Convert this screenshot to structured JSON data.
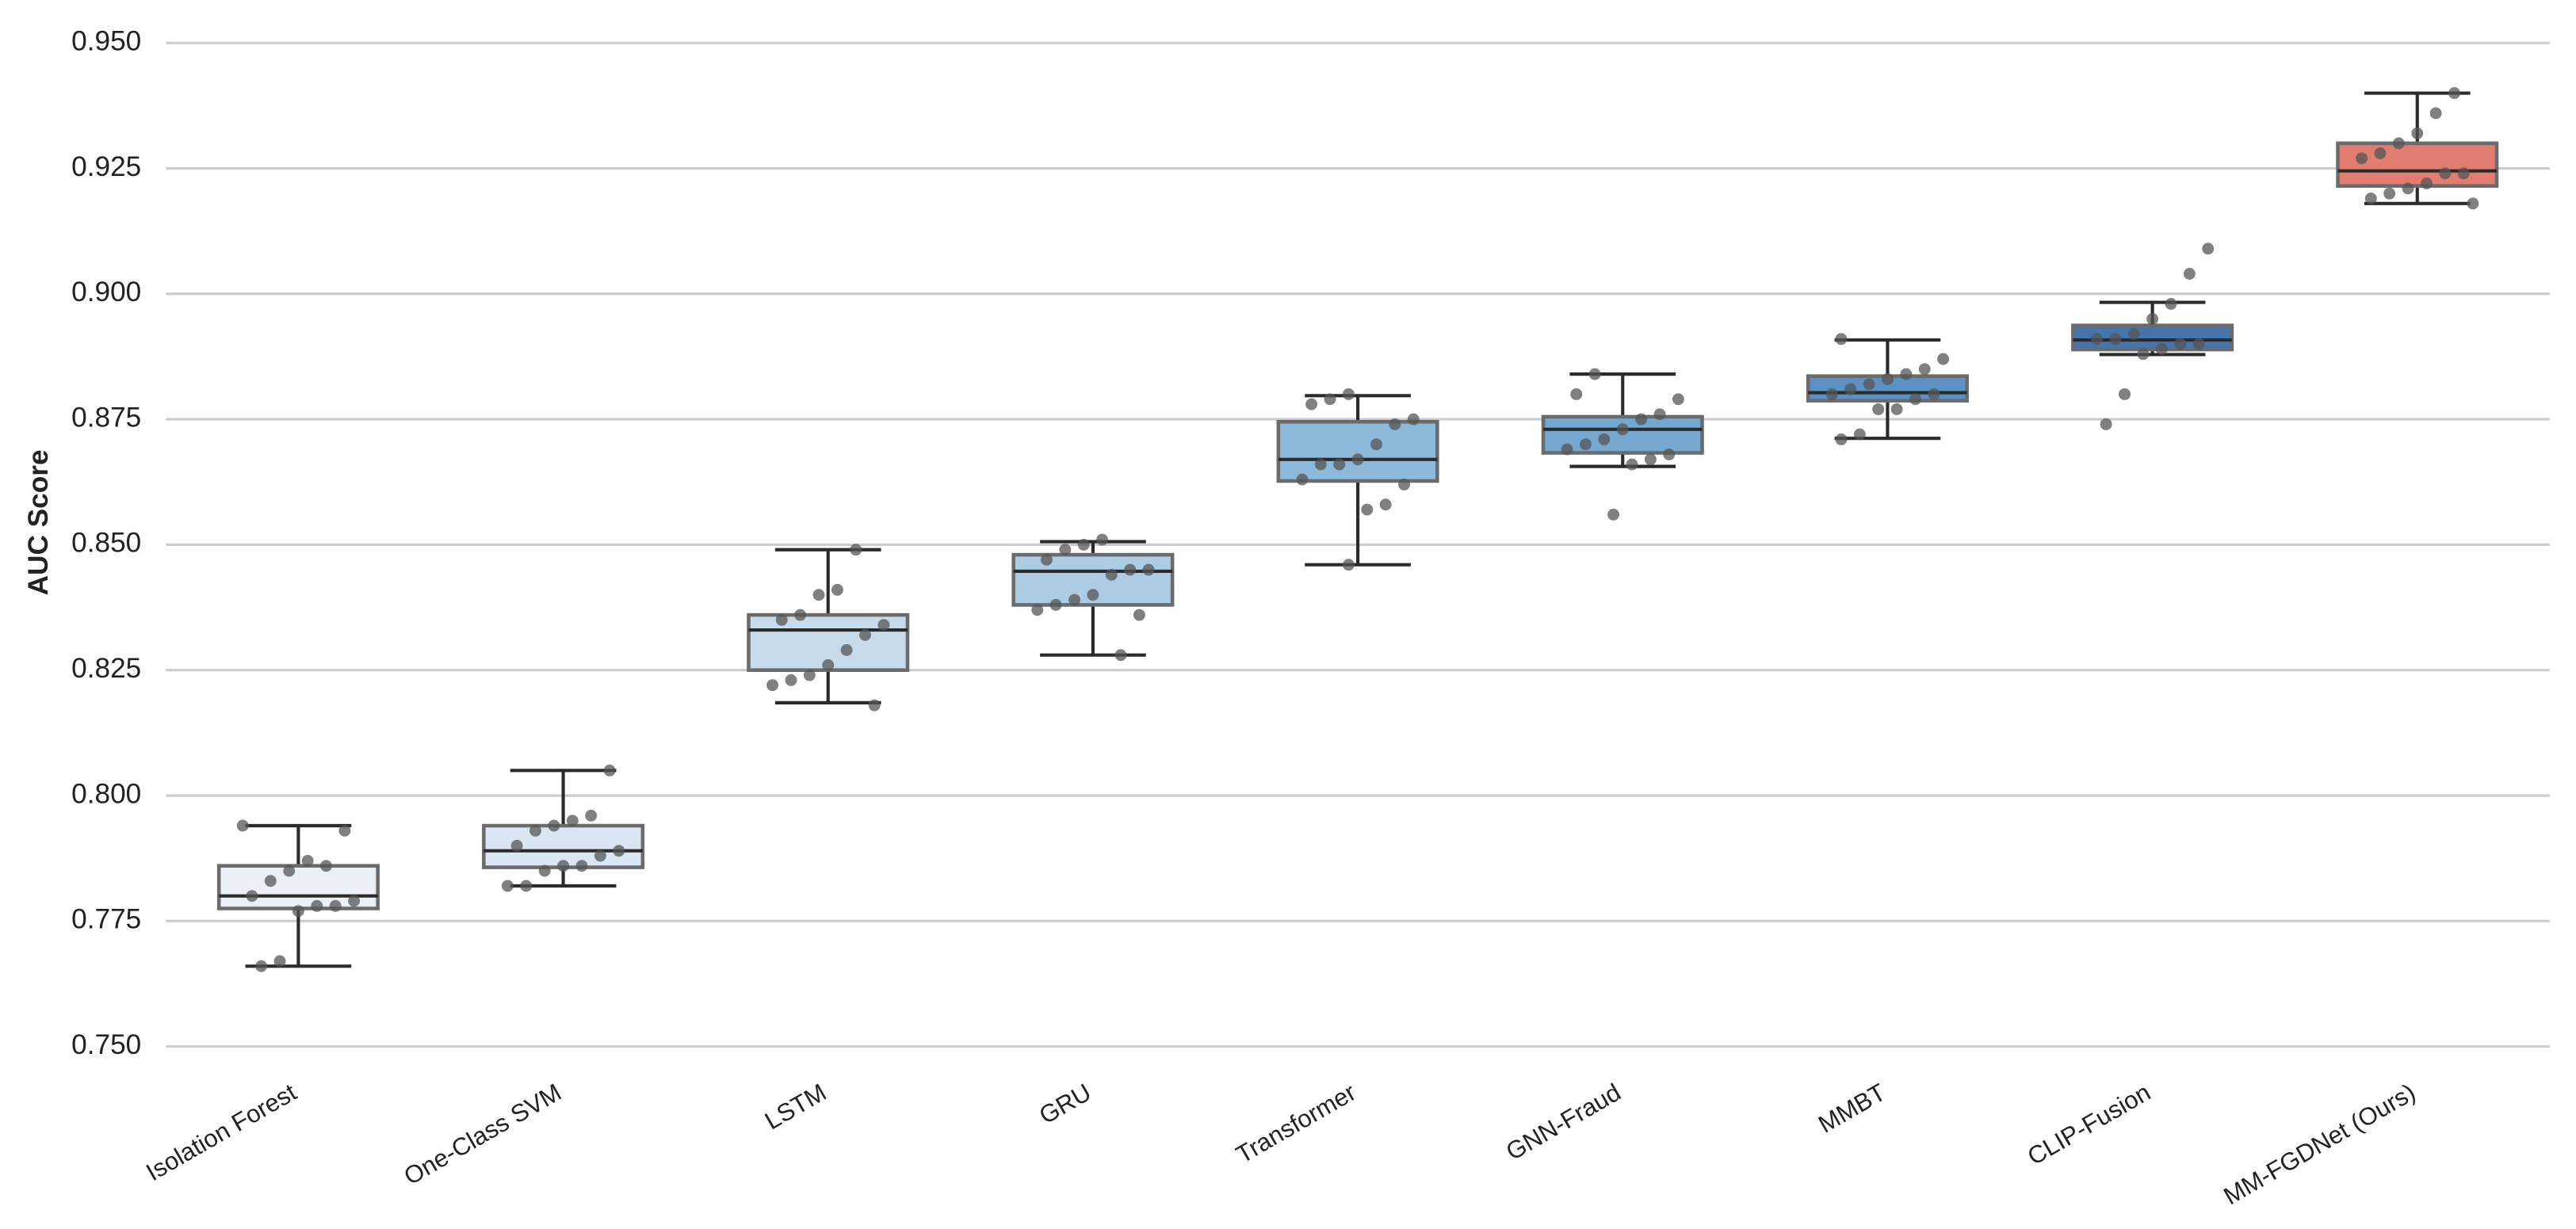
{
  "chart_data": {
    "type": "box",
    "ylabel": "AUC Score",
    "ylim": [
      0.75,
      0.95
    ],
    "yticks": [
      {
        "value": 0.75,
        "label": "0.750"
      },
      {
        "value": 0.775,
        "label": "0.775"
      },
      {
        "value": 0.8,
        "label": "0.800"
      },
      {
        "value": 0.825,
        "label": "0.825"
      },
      {
        "value": 0.85,
        "label": "0.850"
      },
      {
        "value": 0.875,
        "label": "0.875"
      },
      {
        "value": 0.9,
        "label": "0.900"
      },
      {
        "value": 0.925,
        "label": "0.925"
      },
      {
        "value": 0.95,
        "label": "0.950"
      }
    ],
    "grid": true,
    "categories": [
      "Isolation Forest",
      "One-Class SVM",
      "LSTM",
      "GRU",
      "Transformer",
      "GNN-Fraud",
      "MMBT",
      "CLIP-Fusion",
      "MM-FGDNet (Ours)"
    ],
    "boxes": [
      {
        "color": "#eaf0f6",
        "whislo": 0.766,
        "q1": 0.7775,
        "med": 0.78,
        "q3": 0.786,
        "whishi": 0.794,
        "points": [
          0.794,
          0.793,
          0.786,
          0.787,
          0.785,
          0.783,
          0.78,
          0.779,
          0.778,
          0.778,
          0.777,
          0.767,
          0.766
        ]
      },
      {
        "color": "#dae6f1",
        "whislo": 0.782,
        "q1": 0.7857,
        "med": 0.789,
        "q3": 0.794,
        "whishi": 0.805,
        "points": [
          0.805,
          0.796,
          0.795,
          0.794,
          0.793,
          0.79,
          0.789,
          0.788,
          0.786,
          0.786,
          0.785,
          0.782,
          0.782
        ]
      },
      {
        "color": "#c7dbea",
        "whislo": 0.8185,
        "q1": 0.825,
        "med": 0.833,
        "q3": 0.836,
        "whishi": 0.849,
        "points": [
          0.849,
          0.841,
          0.84,
          0.836,
          0.835,
          0.834,
          0.832,
          0.829,
          0.826,
          0.824,
          0.823,
          0.822,
          0.818
        ]
      },
      {
        "color": "#abcce3",
        "whislo": 0.828,
        "q1": 0.838,
        "med": 0.8447,
        "q3": 0.848,
        "whishi": 0.8506,
        "points": [
          0.851,
          0.85,
          0.849,
          0.847,
          0.845,
          0.845,
          0.844,
          0.84,
          0.839,
          0.838,
          0.837,
          0.836,
          0.828
        ]
      },
      {
        "color": "#8db9da",
        "whislo": 0.846,
        "q1": 0.8627,
        "med": 0.867,
        "q3": 0.8745,
        "whishi": 0.8797,
        "points": [
          0.88,
          0.879,
          0.878,
          0.875,
          0.874,
          0.87,
          0.867,
          0.866,
          0.866,
          0.863,
          0.862,
          0.858,
          0.857,
          0.846
        ]
      },
      {
        "color": "#74a8d0",
        "whislo": 0.8656,
        "q1": 0.8683,
        "med": 0.873,
        "q3": 0.8755,
        "whishi": 0.884,
        "points": [
          0.884,
          0.88,
          0.879,
          0.876,
          0.875,
          0.873,
          0.871,
          0.87,
          0.869,
          0.868,
          0.867,
          0.866,
          0.856
        ]
      },
      {
        "color": "#5b91c3",
        "whislo": 0.8712,
        "q1": 0.8787,
        "med": 0.8803,
        "q3": 0.8836,
        "whishi": 0.8908,
        "points": [
          0.891,
          0.887,
          0.885,
          0.884,
          0.883,
          0.882,
          0.881,
          0.88,
          0.88,
          0.879,
          0.877,
          0.877,
          0.872,
          0.871
        ]
      },
      {
        "color": "#4475ad",
        "whislo": 0.8879,
        "q1": 0.8889,
        "med": 0.8908,
        "q3": 0.8937,
        "whishi": 0.8983,
        "points": [
          0.909,
          0.904,
          0.898,
          0.895,
          0.892,
          0.891,
          0.891,
          0.89,
          0.89,
          0.889,
          0.888,
          0.88,
          0.874
        ]
      },
      {
        "color": "#e07c70",
        "whislo": 0.918,
        "q1": 0.9215,
        "med": 0.9245,
        "q3": 0.93,
        "whishi": 0.94,
        "points": [
          0.94,
          0.936,
          0.932,
          0.93,
          0.928,
          0.927,
          0.924,
          0.924,
          0.922,
          0.921,
          0.92,
          0.919,
          0.918
        ]
      }
    ]
  }
}
